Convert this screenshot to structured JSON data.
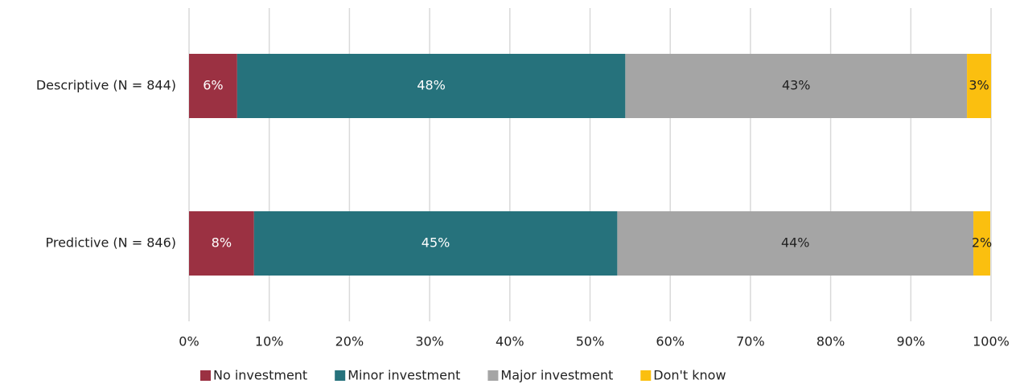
{
  "chart_data": {
    "type": "stacked-bar-horizontal",
    "categories": [
      "Descriptive (N = 844)",
      "Predictive (N = 846)"
    ],
    "series": [
      {
        "name": "No investment",
        "color": "#9b3142",
        "values": [
          6.0,
          8.1
        ],
        "value_labels": [
          "6%",
          "8%"
        ]
      },
      {
        "name": "Minor investment",
        "color": "#26727c",
        "values": [
          48.4,
          45.3
        ],
        "value_labels": [
          "48%",
          "45%"
        ]
      },
      {
        "name": "Major investment",
        "color": "#a5a5a5",
        "values": [
          42.6,
          44.4
        ],
        "value_labels": [
          "43%",
          "44%"
        ]
      },
      {
        "name": "Don't know",
        "color": "#fbbf0f",
        "values": [
          3.0,
          2.1
        ],
        "value_labels": [
          "3%",
          "2%"
        ]
      }
    ],
    "xlim": [
      0,
      100
    ],
    "xticks": [
      {
        "value": 0,
        "label": "0%"
      },
      {
        "value": 10,
        "label": "10%"
      },
      {
        "value": 20,
        "label": "20%"
      },
      {
        "value": 30,
        "label": "30%"
      },
      {
        "value": 40,
        "label": "40%"
      },
      {
        "value": 50,
        "label": "50%"
      },
      {
        "value": 60,
        "label": "60%"
      },
      {
        "value": 70,
        "label": "70%"
      },
      {
        "value": 80,
        "label": "80%"
      },
      {
        "value": 90,
        "label": "90%"
      },
      {
        "value": 100,
        "label": "100%"
      }
    ],
    "grid": true,
    "legend": "bottom"
  }
}
